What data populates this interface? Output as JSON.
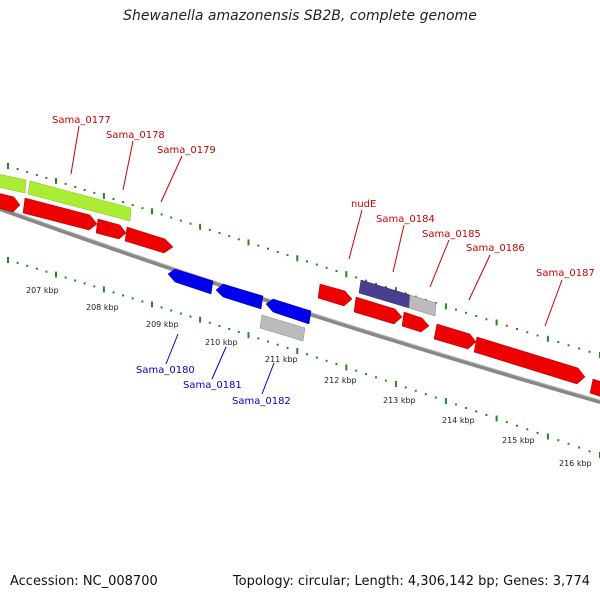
{
  "title": "Shewanella amazonensis SB2B, complete genome",
  "footer": {
    "accession": "Accession: NC_008700",
    "summary": "Topology: circular; Length: 4,306,142 bp; Genes: 3,774"
  },
  "colors": {
    "forward_gene": "#ee0000",
    "reverse_gene": "#0000ee",
    "rna_gene": "#aaee33",
    "other_feature": "#bbbbbb",
    "overlap_feature": "#4a3f8f",
    "forward_label": "#cc0000",
    "reverse_label": "#0000cc",
    "tick": "#228822",
    "backbone": "#888888"
  },
  "kbp_labels": [
    "207 kbp",
    "208 kbp",
    "209 kbp",
    "210 kbp",
    "211 kbp",
    "212 kbp",
    "213 kbp",
    "214 kbp",
    "215 kbp",
    "216 kbp"
  ],
  "forward_labels": [
    "Sama_0177",
    "Sama_0178",
    "Sama_0179",
    "nudE",
    "Sama_0184",
    "Sama_0185",
    "Sama_0186",
    "Sama_0187"
  ],
  "reverse_labels": [
    "Sama_0180",
    "Sama_0181",
    "Sama_0182"
  ]
}
